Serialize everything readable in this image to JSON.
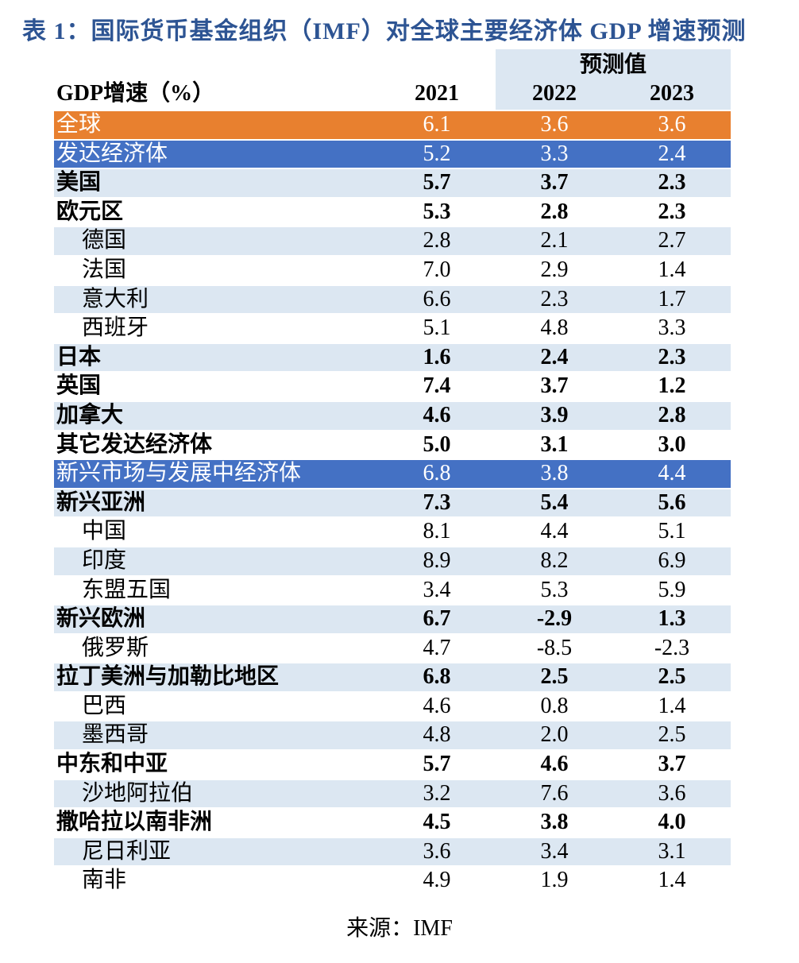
{
  "title": "表 1：国际货币基金组织（IMF）对全球主要经济体 GDP 增速预测",
  "source": "来源：IMF",
  "colors": {
    "title_blue": "#2D5493",
    "orange": "#E8802F",
    "row_blue": "#4471C4",
    "light_blue": "#DCE7F2"
  },
  "table": {
    "forecast_header": "预测值",
    "col_headers": [
      "GDP增速（%）",
      "2021",
      "2022",
      "2023"
    ],
    "rows": [
      {
        "label": "全球",
        "values": [
          "6.1",
          "3.6",
          "3.6"
        ],
        "style": "orange",
        "indent": 0
      },
      {
        "label": "发达经济体",
        "values": [
          "5.2",
          "3.3",
          "2.4"
        ],
        "style": "blue",
        "indent": 0
      },
      {
        "label": "美国",
        "values": [
          "5.7",
          "3.7",
          "2.3"
        ],
        "style": "bold",
        "indent": 0
      },
      {
        "label": "欧元区",
        "values": [
          "5.3",
          "2.8",
          "2.3"
        ],
        "style": "bold",
        "indent": 0
      },
      {
        "label": "德国",
        "values": [
          "2.8",
          "2.1",
          "2.7"
        ],
        "style": "normal",
        "indent": 1
      },
      {
        "label": "法国",
        "values": [
          "7.0",
          "2.9",
          "1.4"
        ],
        "style": "normal",
        "indent": 1
      },
      {
        "label": "意大利",
        "values": [
          "6.6",
          "2.3",
          "1.7"
        ],
        "style": "normal",
        "indent": 1
      },
      {
        "label": "西班牙",
        "values": [
          "5.1",
          "4.8",
          "3.3"
        ],
        "style": "normal",
        "indent": 1
      },
      {
        "label": "日本",
        "values": [
          "1.6",
          "2.4",
          "2.3"
        ],
        "style": "bold",
        "indent": 0
      },
      {
        "label": "英国",
        "values": [
          "7.4",
          "3.7",
          "1.2"
        ],
        "style": "bold",
        "indent": 0
      },
      {
        "label": "加拿大",
        "values": [
          "4.6",
          "3.9",
          "2.8"
        ],
        "style": "bold",
        "indent": 0
      },
      {
        "label": "其它发达经济体",
        "values": [
          "5.0",
          "3.1",
          "3.0"
        ],
        "style": "bold",
        "indent": 0
      },
      {
        "label": "新兴市场与发展中经济体",
        "values": [
          "6.8",
          "3.8",
          "4.4"
        ],
        "style": "blue",
        "indent": 0
      },
      {
        "label": "新兴亚洲",
        "values": [
          "7.3",
          "5.4",
          "5.6"
        ],
        "style": "bold",
        "indent": 0
      },
      {
        "label": "中国",
        "values": [
          "8.1",
          "4.4",
          "5.1"
        ],
        "style": "normal",
        "indent": 1
      },
      {
        "label": "印度",
        "values": [
          "8.9",
          "8.2",
          "6.9"
        ],
        "style": "normal",
        "indent": 1
      },
      {
        "label": "东盟五国",
        "values": [
          "3.4",
          "5.3",
          "5.9"
        ],
        "style": "normal",
        "indent": 1
      },
      {
        "label": "新兴欧洲",
        "values": [
          "6.7",
          "-2.9",
          "1.3"
        ],
        "style": "bold",
        "indent": 0
      },
      {
        "label": "俄罗斯",
        "values": [
          "4.7",
          "-8.5",
          "-2.3"
        ],
        "style": "normal",
        "indent": 1
      },
      {
        "label": "拉丁美洲与加勒比地区",
        "values": [
          "6.8",
          "2.5",
          "2.5"
        ],
        "style": "bold",
        "indent": 0
      },
      {
        "label": "巴西",
        "values": [
          "4.6",
          "0.8",
          "1.4"
        ],
        "style": "normal",
        "indent": 1
      },
      {
        "label": "墨西哥",
        "values": [
          "4.8",
          "2.0",
          "2.5"
        ],
        "style": "normal",
        "indent": 1
      },
      {
        "label": "中东和中亚",
        "values": [
          "5.7",
          "4.6",
          "3.7"
        ],
        "style": "bold",
        "indent": 0
      },
      {
        "label": "沙地阿拉伯",
        "values": [
          "3.2",
          "7.6",
          "3.6"
        ],
        "style": "normal",
        "indent": 1
      },
      {
        "label": "撒哈拉以南非洲",
        "values": [
          "4.5",
          "3.8",
          "4.0"
        ],
        "style": "bold",
        "indent": 0
      },
      {
        "label": "尼日利亚",
        "values": [
          "3.6",
          "3.4",
          "3.1"
        ],
        "style": "normal",
        "indent": 1
      },
      {
        "label": "南非",
        "values": [
          "4.9",
          "1.9",
          "1.4"
        ],
        "style": "normal",
        "indent": 1
      }
    ]
  },
  "chart_data": {
    "type": "table",
    "title": "表 1：国际货币基金组织（IMF）对全球主要经济体 GDP 增速预测",
    "columns": [
      "GDP增速（%）",
      "2021",
      "2022",
      "2023"
    ],
    "forecast_columns": [
      "2022",
      "2023"
    ],
    "rows": [
      [
        "全球",
        6.1,
        3.6,
        3.6
      ],
      [
        "发达经济体",
        5.2,
        3.3,
        2.4
      ],
      [
        "美国",
        5.7,
        3.7,
        2.3
      ],
      [
        "欧元区",
        5.3,
        2.8,
        2.3
      ],
      [
        "德国",
        2.8,
        2.1,
        2.7
      ],
      [
        "法国",
        7.0,
        2.9,
        1.4
      ],
      [
        "意大利",
        6.6,
        2.3,
        1.7
      ],
      [
        "西班牙",
        5.1,
        4.8,
        3.3
      ],
      [
        "日本",
        1.6,
        2.4,
        2.3
      ],
      [
        "英国",
        7.4,
        3.7,
        1.2
      ],
      [
        "加拿大",
        4.6,
        3.9,
        2.8
      ],
      [
        "其它发达经济体",
        5.0,
        3.1,
        3.0
      ],
      [
        "新兴市场与发展中经济体",
        6.8,
        3.8,
        4.4
      ],
      [
        "新兴亚洲",
        7.3,
        5.4,
        5.6
      ],
      [
        "中国",
        8.1,
        4.4,
        5.1
      ],
      [
        "印度",
        8.9,
        8.2,
        6.9
      ],
      [
        "东盟五国",
        3.4,
        5.3,
        5.9
      ],
      [
        "新兴欧洲",
        6.7,
        -2.9,
        1.3
      ],
      [
        "俄罗斯",
        4.7,
        -8.5,
        -2.3
      ],
      [
        "拉丁美洲与加勒比地区",
        6.8,
        2.5,
        2.5
      ],
      [
        "巴西",
        4.6,
        0.8,
        1.4
      ],
      [
        "墨西哥",
        4.8,
        2.0,
        2.5
      ],
      [
        "中东和中亚",
        5.7,
        4.6,
        3.7
      ],
      [
        "沙地阿拉伯",
        3.2,
        7.6,
        3.6
      ],
      [
        "撒哈拉以南非洲",
        4.5,
        3.8,
        4.0
      ],
      [
        "尼日利亚",
        3.6,
        3.4,
        3.1
      ],
      [
        "南非",
        4.9,
        1.9,
        1.4
      ]
    ],
    "source": "来源：IMF"
  }
}
